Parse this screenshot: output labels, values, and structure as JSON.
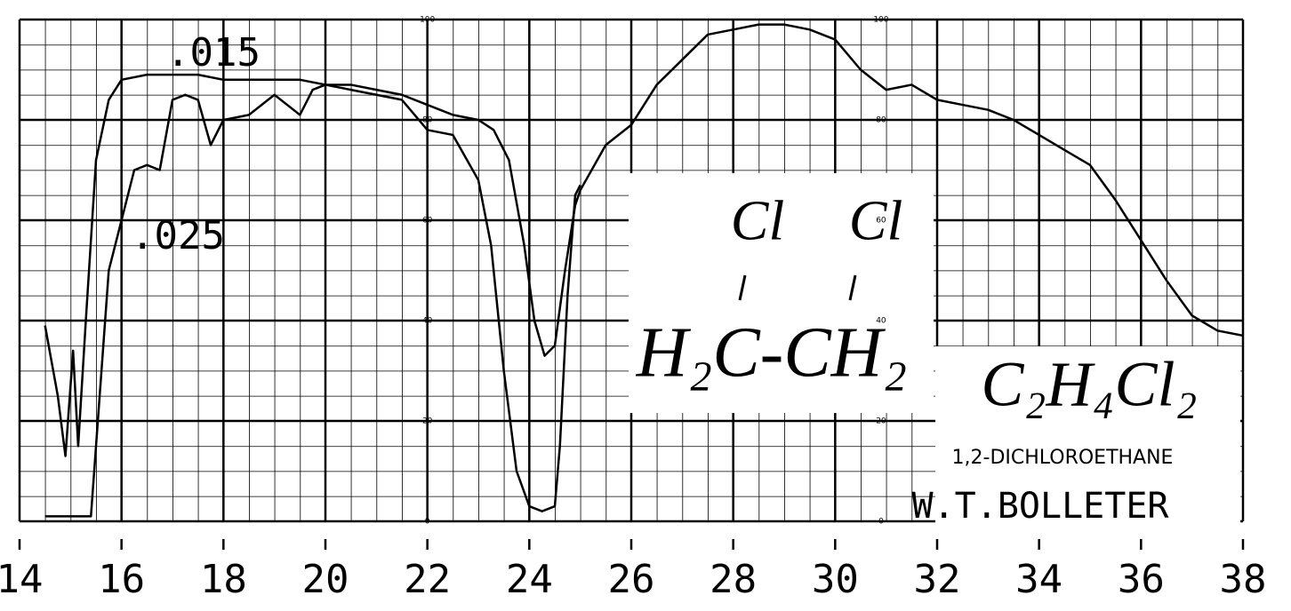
{
  "chart_data": {
    "type": "line",
    "xlim": [
      14,
      38
    ],
    "ylim": [
      0,
      100
    ],
    "xticks": [
      14,
      16,
      18,
      20,
      22,
      24,
      26,
      28,
      30,
      32,
      34,
      36,
      38
    ],
    "yticks": [
      0,
      20,
      40,
      60,
      80,
      100
    ],
    "grid": true,
    "series": [
      {
        "name": ".015",
        "color": "#000000",
        "x": [
          14.5,
          14.75,
          14.9,
          15.05,
          15.15,
          15.3,
          15.5,
          15.75,
          16,
          16.5,
          17,
          17.5,
          18,
          18.5,
          19,
          19.5,
          20,
          20.5,
          21,
          21.5,
          22,
          22.5,
          23,
          23.3,
          23.6,
          23.9,
          24.1,
          24.3,
          24.5,
          24.7,
          24.9,
          25,
          25.5,
          26,
          26.5,
          27,
          27.5,
          28,
          28.5,
          29,
          29.5,
          30,
          30.5,
          31,
          31.5,
          32,
          32.5,
          33,
          33.5,
          34,
          34.5,
          35,
          35.5,
          36,
          36.5,
          37,
          37.5,
          38
        ],
        "values": [
          39,
          25,
          13,
          34,
          15,
          40,
          72,
          84,
          88,
          89,
          89,
          89,
          88,
          88,
          88,
          88,
          87,
          87,
          86,
          85,
          83,
          81,
          80,
          78,
          72,
          55,
          40,
          33,
          35,
          50,
          63,
          66,
          75,
          79,
          87,
          92,
          97,
          98,
          99,
          99,
          98,
          96,
          90,
          86,
          87,
          84,
          83,
          82,
          80,
          77,
          74,
          71,
          64,
          56,
          48,
          41,
          38,
          37
        ]
      },
      {
        "name": ".025",
        "color": "#000000",
        "x": [
          14.5,
          15,
          15.4,
          15.5,
          15.75,
          16,
          16.25,
          16.5,
          16.75,
          17,
          17.25,
          17.5,
          17.75,
          18,
          18.5,
          19,
          19.25,
          19.5,
          19.75,
          20,
          20.5,
          21,
          21.5,
          22,
          22.5,
          23,
          23.25,
          23.5,
          23.75,
          24,
          24.25,
          24.5,
          24.6,
          24.75,
          24.9,
          25
        ],
        "values": [
          1,
          1,
          1,
          15,
          50,
          60,
          70,
          71,
          70,
          84,
          85,
          84,
          75,
          80,
          81,
          85,
          83,
          81,
          86,
          87,
          86,
          85,
          84,
          78,
          77,
          68,
          55,
          30,
          10,
          3,
          2,
          3,
          15,
          45,
          65,
          67
        ]
      }
    ],
    "structure": [
      "Cl",
      "Cl",
      "H₂C-CH₂"
    ],
    "formula": "C₂H₄Cl₂",
    "compound_name": "1,2-DICHLOROETHANE",
    "author": "W.T.BOLLETER"
  }
}
